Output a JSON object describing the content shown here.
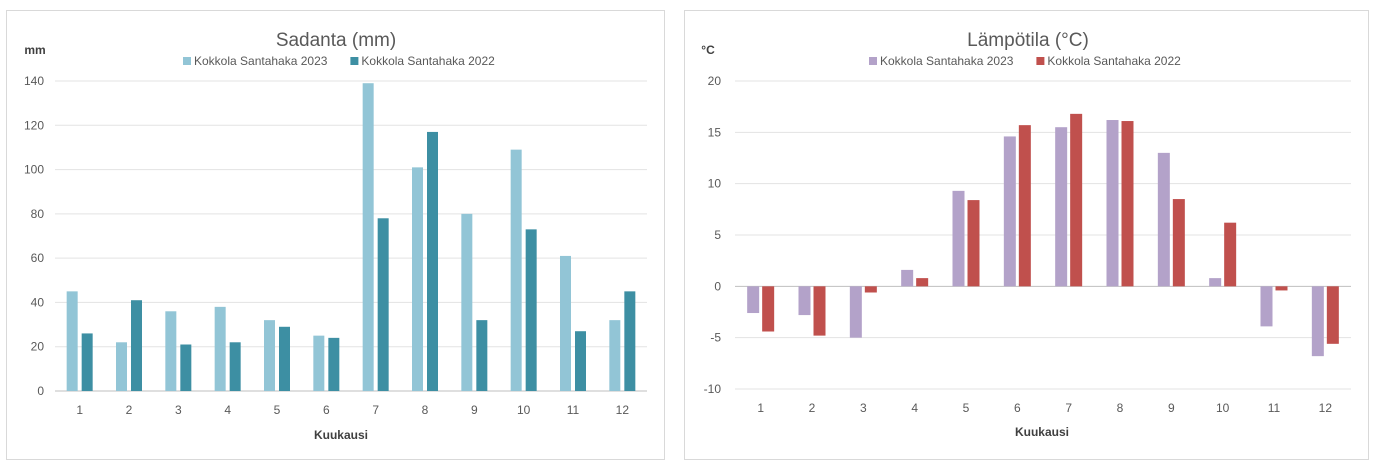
{
  "chart_data": [
    {
      "type": "bar",
      "title": "Sadanta (mm)",
      "ylabel": "mm",
      "xlabel": "Kuukausi",
      "categories": [
        "1",
        "2",
        "3",
        "4",
        "5",
        "6",
        "7",
        "8",
        "9",
        "10",
        "11",
        "12"
      ],
      "ylim": [
        0,
        140
      ],
      "yticks": [
        "0",
        "20",
        "40",
        "60",
        "80",
        "100",
        "120",
        "140"
      ],
      "grid": true,
      "legend_position": "top",
      "series": [
        {
          "name": "Kokkola Santahaka 2023",
          "color": "#92c5d6",
          "values": [
            45,
            22,
            36,
            38,
            32,
            25,
            139,
            101,
            80,
            109,
            61,
            32
          ]
        },
        {
          "name": "Kokkola Santahaka 2022",
          "color": "#3d8fa3",
          "values": [
            26,
            41,
            21,
            22,
            29,
            24,
            78,
            117,
            32,
            73,
            27,
            45
          ]
        }
      ]
    },
    {
      "type": "bar",
      "title": "Lämpötila (°C)",
      "ylabel": "°C",
      "xlabel": "Kuukausi",
      "categories": [
        "1",
        "2",
        "3",
        "4",
        "5",
        "6",
        "7",
        "8",
        "9",
        "10",
        "11",
        "12"
      ],
      "ylim": [
        -10,
        20
      ],
      "yticks": [
        "-10",
        "-5",
        "0",
        "5",
        "10",
        "15",
        "20"
      ],
      "grid": true,
      "legend_position": "top",
      "series": [
        {
          "name": "Kokkola Santahaka 2023",
          "color": "#b3a2c9",
          "values": [
            -2.6,
            -2.8,
            -5.0,
            1.6,
            9.3,
            14.6,
            15.5,
            16.2,
            13.0,
            0.8,
            -3.9,
            -6.8
          ]
        },
        {
          "name": "Kokkola Santahaka 2022",
          "color": "#c0504d",
          "values": [
            -4.4,
            -4.8,
            -0.6,
            0.8,
            8.4,
            15.7,
            16.8,
            16.1,
            8.5,
            6.2,
            -0.4,
            -5.6
          ]
        }
      ]
    }
  ]
}
